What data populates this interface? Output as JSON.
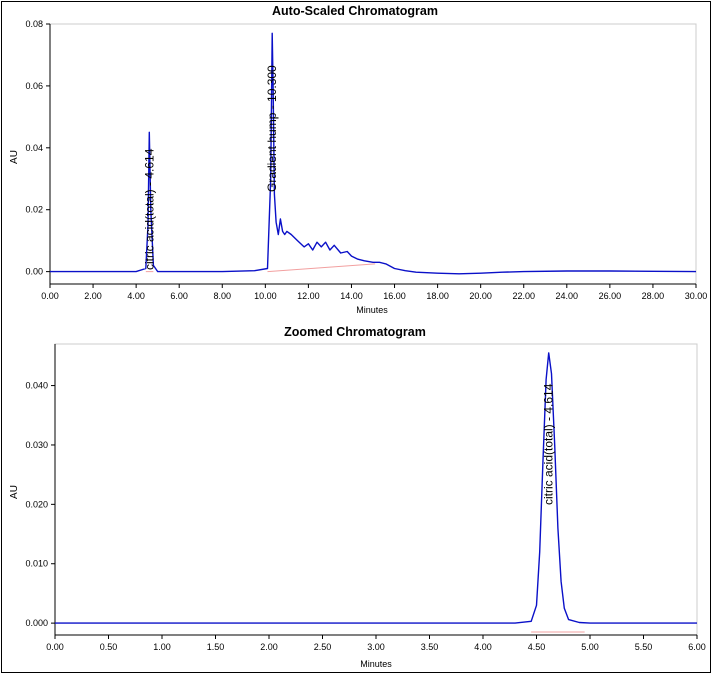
{
  "colors": {
    "trace": "#0a10c8",
    "baseline": "#f2a0a0",
    "axis": "#000000",
    "border": "#cccccc"
  },
  "chart_data": [
    {
      "type": "line",
      "title": "Auto-Scaled Chromatogram",
      "xlabel": "Minutes",
      "ylabel": "AU",
      "xlim": [
        0,
        30
      ],
      "ylim": [
        -0.004,
        0.08
      ],
      "x_ticks": [
        "0.00",
        "2.00",
        "4.00",
        "6.00",
        "8.00",
        "10.00",
        "12.00",
        "14.00",
        "16.00",
        "18.00",
        "20.00",
        "22.00",
        "24.00",
        "26.00",
        "28.00",
        "30.00"
      ],
      "y_ticks": [
        "0.00",
        "0.02",
        "0.04",
        "0.06",
        "0.08"
      ],
      "grid": false,
      "series": [
        {
          "x": [
            0,
            2,
            4,
            4.45,
            4.55,
            4.61,
            4.68,
            4.8,
            5,
            6,
            8,
            9.5,
            10.1,
            10.25,
            10.32,
            10.36,
            10.42,
            10.5,
            10.6,
            10.7,
            10.8,
            10.9,
            11,
            11.2,
            11.5,
            11.8,
            12,
            12.2,
            12.4,
            12.6,
            12.8,
            13,
            13.2,
            13.5,
            13.8,
            14,
            14.3,
            14.6,
            15,
            15.3,
            15.6,
            16,
            16.5,
            17,
            18,
            19,
            20,
            21,
            22,
            24,
            26,
            28,
            30
          ],
          "values": [
            0.0,
            0.0,
            0.0,
            0.001,
            0.015,
            0.045,
            0.02,
            0.002,
            0.0,
            0.0,
            0.0,
            0.0003,
            0.001,
            0.03,
            0.077,
            0.06,
            0.025,
            0.016,
            0.012,
            0.017,
            0.013,
            0.012,
            0.013,
            0.012,
            0.01,
            0.008,
            0.009,
            0.007,
            0.0095,
            0.008,
            0.0095,
            0.007,
            0.0085,
            0.006,
            0.0065,
            0.005,
            0.004,
            0.0035,
            0.003,
            0.003,
            0.0025,
            0.001,
            0.0003,
            -0.0002,
            -0.0005,
            -0.0007,
            -0.0005,
            -0.0002,
            0.0,
            0.0002,
            0.0002,
            0.0001,
            0.0
          ]
        }
      ],
      "annotations": [
        {
          "x": 4.614,
          "text": "citric acid(total) - 4.614"
        },
        {
          "x": 10.3,
          "text": "Gradient hump - 10.300"
        }
      ],
      "baselines": [
        {
          "x": [
            4.45,
            4.8
          ],
          "y": [
            0.0,
            0.0
          ]
        },
        {
          "x": [
            10.1,
            15.1
          ],
          "y": [
            0.0,
            0.0025
          ]
        }
      ]
    },
    {
      "type": "line",
      "title": "Zoomed Chromatogram",
      "xlabel": "Minutes",
      "ylabel": "AU",
      "xlim": [
        0,
        6
      ],
      "ylim": [
        -0.002,
        0.047
      ],
      "x_ticks": [
        "0.00",
        "0.50",
        "1.00",
        "1.50",
        "2.00",
        "2.50",
        "3.00",
        "3.50",
        "4.00",
        "4.50",
        "5.00",
        "5.50",
        "6.00"
      ],
      "y_ticks": [
        "0.000",
        "0.010",
        "0.020",
        "0.030",
        "0.040"
      ],
      "grid": false,
      "series": [
        {
          "x": [
            0,
            0.5,
            1,
            1.5,
            2,
            2.5,
            3,
            3.5,
            4,
            4.3,
            4.45,
            4.5,
            4.53,
            4.56,
            4.59,
            4.614,
            4.64,
            4.67,
            4.7,
            4.73,
            4.76,
            4.8,
            4.9,
            5.0,
            5.5,
            6.0
          ],
          "values": [
            0.0,
            0.0,
            0.0,
            0.0,
            0.0,
            0.0,
            0.0,
            0.0,
            0.0,
            0.0,
            0.0003,
            0.003,
            0.012,
            0.027,
            0.041,
            0.0455,
            0.042,
            0.03,
            0.016,
            0.007,
            0.0025,
            0.0006,
            0.0001,
            0.0,
            0.0,
            0.0
          ]
        }
      ],
      "annotations": [
        {
          "x": 4.614,
          "text": "citric acid(total) - 4.614"
        }
      ],
      "baselines": [
        {
          "x": [
            4.45,
            4.95
          ],
          "y": [
            -0.0015,
            -0.0015
          ]
        }
      ]
    }
  ]
}
